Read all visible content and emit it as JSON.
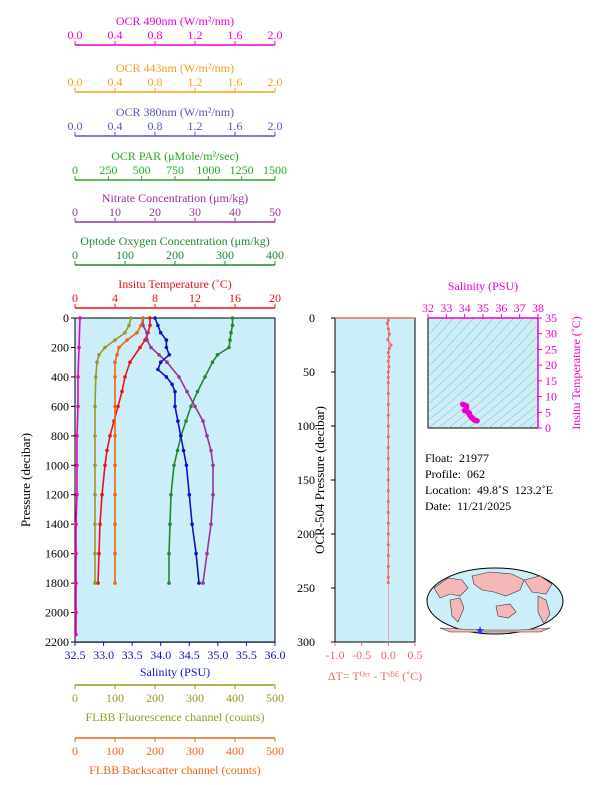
{
  "chart_data": [
    {
      "type": "line",
      "panel": "main-profile",
      "top_axes": [
        {
          "key": "ocr490",
          "label": "OCR 490nm (W/m²/nm)",
          "range": [
            0,
            2
          ],
          "ticks": [
            0.0,
            0.4,
            0.8,
            1.2,
            1.6,
            2.0
          ],
          "tick_labels": [
            "0.0",
            "0.4",
            "0.8",
            "1.2",
            "1.6",
            "2.0"
          ],
          "color": "#ee00cc"
        },
        {
          "key": "ocr443",
          "label": "OCR 443nm (W/m²/nm)",
          "range": [
            0,
            2
          ],
          "ticks": [
            0.0,
            0.4,
            0.8,
            1.2,
            1.6,
            2.0
          ],
          "tick_labels": [
            "0.0",
            "0.4",
            "0.8",
            "1.2",
            "1.6",
            "2.0"
          ],
          "color": "#f0a020"
        },
        {
          "key": "ocr380",
          "label": "OCR 380nm (W/m²/nm)",
          "range": [
            0,
            2
          ],
          "ticks": [
            0.0,
            0.4,
            0.8,
            1.2,
            1.6,
            2.0
          ],
          "tick_labels": [
            "0.0",
            "0.4",
            "0.8",
            "1.2",
            "1.6",
            "2.0"
          ],
          "color": "#5555bb"
        },
        {
          "key": "par",
          "label": "OCR PAR (μMole/m²/sec)",
          "range": [
            0,
            1500
          ],
          "ticks": [
            0,
            250,
            500,
            750,
            1000,
            1250,
            1500
          ],
          "tick_labels": [
            "0",
            "250",
            "500",
            "750",
            "1000",
            "1250",
            "1500"
          ],
          "color": "#22aa22"
        },
        {
          "key": "nitrate",
          "label": "Nitrate Concentration (μm/kg)",
          "range": [
            0,
            50
          ],
          "ticks": [
            0,
            10,
            20,
            30,
            40,
            50
          ],
          "tick_labels": [
            "0",
            "10",
            "20",
            "30",
            "40",
            "50"
          ],
          "color": "#993399"
        },
        {
          "key": "oxygen",
          "label": "Optode Oxygen Concentration (μm/kg)",
          "range": [
            0,
            400
          ],
          "ticks": [
            0,
            100,
            200,
            300,
            400
          ],
          "tick_labels": [
            "0",
            "100",
            "200",
            "300",
            "400"
          ],
          "color": "#228833"
        },
        {
          "key": "temp",
          "label": "Insitu Temperature (˚C)",
          "range": [
            0,
            20
          ],
          "ticks": [
            0,
            4,
            8,
            12,
            16,
            20
          ],
          "tick_labels": [
            "0",
            "4",
            "8",
            "12",
            "16",
            "20"
          ],
          "color": "#ee1111"
        }
      ],
      "bottom_axes": [
        {
          "key": "sal",
          "label": "Salinity (PSU)",
          "range": [
            32.5,
            36.0
          ],
          "ticks": [
            32.5,
            33.0,
            33.5,
            34.0,
            34.5,
            35.0,
            35.5,
            36.0
          ],
          "tick_labels": [
            "32.5",
            "33.0",
            "33.5",
            "34.0",
            "34.5",
            "35.0",
            "35.5",
            "36.0"
          ],
          "color": "#1111cc"
        },
        {
          "key": "fluor",
          "label": "FLBB Fluorescence channel (counts)",
          "range": [
            0,
            500
          ],
          "ticks": [
            0,
            100,
            200,
            300,
            400,
            500
          ],
          "tick_labels": [
            "0",
            "100",
            "200",
            "300",
            "400",
            "500"
          ],
          "color": "#999922"
        },
        {
          "key": "bbp",
          "label": "FLBB Backscatter channel (counts)",
          "range": [
            0,
            500
          ],
          "ticks": [
            0,
            100,
            200,
            300,
            400,
            500
          ],
          "tick_labels": [
            "0",
            "100",
            "200",
            "300",
            "400",
            "500"
          ],
          "color": "#ee6611"
        }
      ],
      "y_axis": {
        "label": "Pressure (decibar)",
        "range": [
          0,
          2200
        ],
        "inverted": true,
        "ticks": [
          0,
          200,
          400,
          600,
          800,
          1000,
          1200,
          1400,
          1600,
          1800,
          2000,
          2200
        ],
        "tick_labels": [
          "0",
          "200",
          "400",
          "600",
          "800",
          "1000",
          "1200",
          "1400",
          "1600",
          "1800",
          "2000",
          "2200"
        ]
      },
      "series": [
        {
          "key": "oxygen",
          "color": "#228833",
          "points": [
            [
              0,
              315
            ],
            [
              50,
              315
            ],
            [
              100,
              312
            ],
            [
              150,
              310
            ],
            [
              200,
              308
            ],
            [
              250,
              285
            ],
            [
              300,
              275
            ],
            [
              400,
              260
            ],
            [
              500,
              245
            ],
            [
              600,
              232
            ],
            [
              700,
              222
            ],
            [
              800,
              212
            ],
            [
              900,
              205
            ],
            [
              1000,
              198
            ],
            [
              1200,
              192
            ],
            [
              1400,
              190
            ],
            [
              1600,
              188
            ],
            [
              1800,
              188
            ]
          ]
        },
        {
          "key": "temp",
          "color": "#ee1111",
          "points": [
            [
              0,
              7.5
            ],
            [
              50,
              7.5
            ],
            [
              100,
              7.3
            ],
            [
              150,
              7.0
            ],
            [
              200,
              6.5
            ],
            [
              300,
              5.5
            ],
            [
              400,
              5.0
            ],
            [
              500,
              4.7
            ],
            [
              600,
              4.3
            ],
            [
              700,
              3.9
            ],
            [
              800,
              3.5
            ],
            [
              900,
              3.2
            ],
            [
              1000,
              3.0
            ],
            [
              1200,
              2.7
            ],
            [
              1400,
              2.5
            ],
            [
              1600,
              2.4
            ],
            [
              1800,
              2.3
            ]
          ]
        },
        {
          "key": "nitrate",
          "color": "#993399",
          "points": [
            [
              0,
              17
            ],
            [
              50,
              17
            ],
            [
              100,
              18
            ],
            [
              150,
              18
            ],
            [
              200,
              19
            ],
            [
              250,
              21
            ],
            [
              300,
              23
            ],
            [
              400,
              26
            ],
            [
              500,
              28
            ],
            [
              600,
              30
            ],
            [
              700,
              32
            ],
            [
              800,
              33
            ],
            [
              900,
              34
            ],
            [
              1000,
              34.5
            ],
            [
              1200,
              34.5
            ],
            [
              1400,
              34
            ],
            [
              1600,
              33
            ],
            [
              1800,
              32
            ]
          ]
        },
        {
          "key": "sal",
          "color": "#1111cc",
          "points": [
            [
              0,
              33.9
            ],
            [
              50,
              33.95
            ],
            [
              100,
              34.0
            ],
            [
              150,
              34.1
            ],
            [
              200,
              34.1
            ],
            [
              250,
              34.15
            ],
            [
              300,
              34.0
            ],
            [
              350,
              33.95
            ],
            [
              400,
              34.1
            ],
            [
              450,
              34.2
            ],
            [
              500,
              34.25
            ],
            [
              600,
              34.25
            ],
            [
              700,
              34.3
            ],
            [
              800,
              34.35
            ],
            [
              900,
              34.4
            ],
            [
              1000,
              34.45
            ],
            [
              1200,
              34.5
            ],
            [
              1400,
              34.55
            ],
            [
              1600,
              34.62
            ],
            [
              1800,
              34.67
            ]
          ]
        },
        {
          "key": "ocr490",
          "color": "#ee00cc",
          "points": [
            [
              0,
              0.05
            ],
            [
              200,
              0.04
            ],
            [
              400,
              0.03
            ],
            [
              600,
              0.03
            ],
            [
              800,
              0.02
            ],
            [
              1000,
              0.02
            ],
            [
              1200,
              0.02
            ],
            [
              1400,
              0.01
            ],
            [
              1600,
              0.01
            ],
            [
              1800,
              0.01
            ],
            [
              2000,
              0.01
            ],
            [
              2150,
              0.01
            ]
          ]
        },
        {
          "key": "fluor",
          "color": "#999922",
          "points": [
            [
              0,
              140
            ],
            [
              50,
              135
            ],
            [
              100,
              125
            ],
            [
              150,
              100
            ],
            [
              200,
              75
            ],
            [
              250,
              60
            ],
            [
              300,
              55
            ],
            [
              400,
              52
            ],
            [
              600,
              50
            ],
            [
              800,
              50
            ],
            [
              1000,
              50
            ],
            [
              1200,
              50
            ],
            [
              1400,
              50
            ],
            [
              1600,
              50
            ],
            [
              1800,
              50
            ]
          ]
        },
        {
          "key": "bbp",
          "color": "#ee6611",
          "points": [
            [
              0,
              170
            ],
            [
              50,
              165
            ],
            [
              100,
              155
            ],
            [
              150,
              130
            ],
            [
              200,
              110
            ],
            [
              250,
              105
            ],
            [
              300,
              100
            ],
            [
              400,
              100
            ],
            [
              600,
              100
            ],
            [
              800,
              100
            ],
            [
              1000,
              100
            ],
            [
              1200,
              100
            ],
            [
              1400,
              100
            ],
            [
              1600,
              100
            ],
            [
              1800,
              100
            ]
          ]
        }
      ]
    },
    {
      "type": "line",
      "panel": "delta-t",
      "xlabel": "ΔT= Tᴼᶜʳ - Tˢᴮᴱ (˚C)",
      "x_ticks": [
        -1.0,
        -0.5,
        0.0,
        0.5
      ],
      "x_tick_labels": [
        "-1.0",
        "-0.5",
        "0.0",
        "0.5"
      ],
      "xlim": [
        -1.0,
        0.5
      ],
      "ylabel": "OCR-504 Pressure (decibar)",
      "y_ticks": [
        0,
        50,
        100,
        150,
        200,
        250,
        300
      ],
      "y_tick_labels": [
        "0",
        "50",
        "100",
        "150",
        "200",
        "250",
        "300"
      ],
      "ylim": [
        0,
        300
      ],
      "color": "#ee6666",
      "points": [
        [
          2,
          0.0
        ],
        [
          5,
          -0.02
        ],
        [
          10,
          0.0
        ],
        [
          15,
          0.02
        ],
        [
          20,
          -0.01
        ],
        [
          25,
          0.05
        ],
        [
          28,
          0.02
        ],
        [
          32,
          0.0
        ],
        [
          36,
          0.01
        ],
        [
          40,
          0.0
        ],
        [
          45,
          0.01
        ],
        [
          50,
          0.0
        ],
        [
          55,
          0.0
        ],
        [
          60,
          0.0
        ],
        [
          70,
          0.0
        ],
        [
          80,
          0.0
        ],
        [
          90,
          0.0
        ],
        [
          100,
          0.0
        ],
        [
          110,
          0.0
        ],
        [
          120,
          0.0
        ],
        [
          130,
          0.0
        ],
        [
          140,
          0.0
        ],
        [
          150,
          0.0
        ],
        [
          160,
          0.0
        ],
        [
          170,
          0.0
        ],
        [
          180,
          0.0
        ],
        [
          190,
          0.0
        ],
        [
          200,
          0.0
        ],
        [
          210,
          0.0
        ],
        [
          220,
          0.0
        ],
        [
          230,
          0.0
        ],
        [
          240,
          0.0
        ],
        [
          245,
          0.0
        ]
      ]
    },
    {
      "type": "scatter",
      "panel": "ts-diagram",
      "xlabel": "Salinity (PSU)",
      "ylabel": "Insitu Temperature (˚C)",
      "x_ticks": [
        32,
        33,
        34,
        35,
        36,
        37,
        38
      ],
      "x_tick_labels": [
        "32",
        "33",
        "34",
        "35",
        "36",
        "37",
        "38"
      ],
      "xlim": [
        32,
        38
      ],
      "y_ticks": [
        0,
        5,
        10,
        15,
        20,
        25,
        30,
        35
      ],
      "y_tick_labels": [
        "0",
        "5",
        "10",
        "15",
        "20",
        "25",
        "30",
        "35"
      ],
      "ylim": [
        0,
        35
      ],
      "color": "#ee00cc",
      "points": [
        [
          33.9,
          7.5
        ],
        [
          34.0,
          7.3
        ],
        [
          34.1,
          7.0
        ],
        [
          34.1,
          6.5
        ],
        [
          34.0,
          5.5
        ],
        [
          34.2,
          5.0
        ],
        [
          34.25,
          4.7
        ],
        [
          34.25,
          4.3
        ],
        [
          34.3,
          3.9
        ],
        [
          34.35,
          3.5
        ],
        [
          34.4,
          3.2
        ],
        [
          34.45,
          3.0
        ],
        [
          34.5,
          2.7
        ],
        [
          34.55,
          2.5
        ],
        [
          34.62,
          2.4
        ],
        [
          34.67,
          2.3
        ]
      ]
    }
  ],
  "info": {
    "float": "Float:  21977",
    "profile": "Profile:  062",
    "location": "Location:  49.8˚S  123.2˚E",
    "date": "Date:  11/21/2025"
  },
  "colors": {
    "plot_background": "#cceef8",
    "map_ocean": "#cceef8",
    "map_land": "#f4b8b8",
    "float_marker": "#2233ff"
  }
}
